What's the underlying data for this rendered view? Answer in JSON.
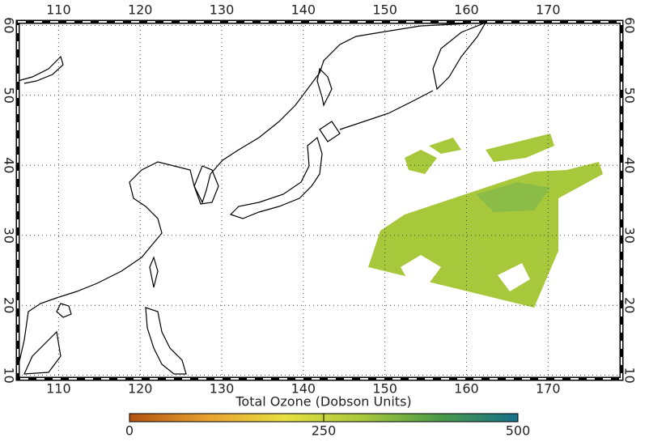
{
  "chart_data": {
    "type": "map",
    "xlim": [
      105,
      179
    ],
    "ylim": [
      9.5,
      60.5
    ],
    "xticks": [
      110,
      120,
      130,
      140,
      150,
      160,
      170
    ],
    "yticks": [
      10,
      20,
      30,
      40,
      50,
      60
    ],
    "grid": true,
    "colorbar": {
      "title": "Total Ozone (Dobson Units)",
      "lim": [
        0,
        500
      ],
      "ticks": [
        0,
        250,
        500
      ],
      "colors": [
        "#b0530e",
        "#e8a030",
        "#e6e040",
        "#a8c83c",
        "#4a9a48",
        "#16708a"
      ]
    }
  }
}
